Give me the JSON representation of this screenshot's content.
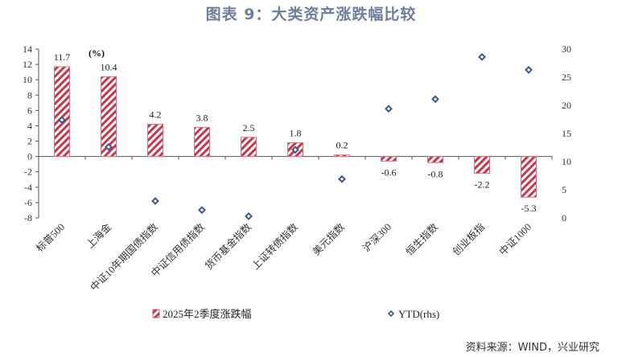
{
  "title": "图表 9：大类资产涨跌幅比较",
  "source": "资料来源：WIND，兴业研究",
  "chart_data": {
    "type": "bar",
    "unit_label": "(%)",
    "categories": [
      "标普500",
      "上海金",
      "中证10年期国债指数",
      "中证信用债指数",
      "货币基金指数",
      "上证转债指数",
      "美元指数",
      "沪深300",
      "恒生指数",
      "创业板指",
      "中证1000"
    ],
    "series": [
      {
        "name": "2025年2季度涨跌幅",
        "type": "bar",
        "axis": "left",
        "values": [
          11.7,
          10.4,
          4.2,
          3.8,
          2.5,
          1.8,
          0.2,
          -0.6,
          -0.8,
          -2.2,
          -5.3
        ],
        "labels": [
          "11.7",
          "10.4",
          "4.2",
          "3.8",
          "2.5",
          "1.8",
          "0.2",
          "-0.6",
          "-0.8",
          "-2.2",
          "-5.3"
        ]
      },
      {
        "name": "YTD(rhs)",
        "type": "scatter",
        "axis": "right",
        "values": [
          17.4,
          12.6,
          3.0,
          1.4,
          0.3,
          12.1,
          6.9,
          19.4,
          21.1,
          28.6,
          26.3
        ]
      }
    ],
    "ylim": [
      -8,
      14
    ],
    "yticks": [
      14,
      12,
      10,
      8,
      6,
      4,
      2,
      0,
      -2,
      -4,
      -6,
      -8
    ],
    "y2lim": [
      0,
      30
    ],
    "y2ticks": [
      30,
      25,
      20,
      15,
      10,
      5,
      0
    ],
    "legend": "bottom",
    "colors": {
      "bar": "#c8364a",
      "marker": "#3d5a8a",
      "axis": "#555555"
    }
  }
}
